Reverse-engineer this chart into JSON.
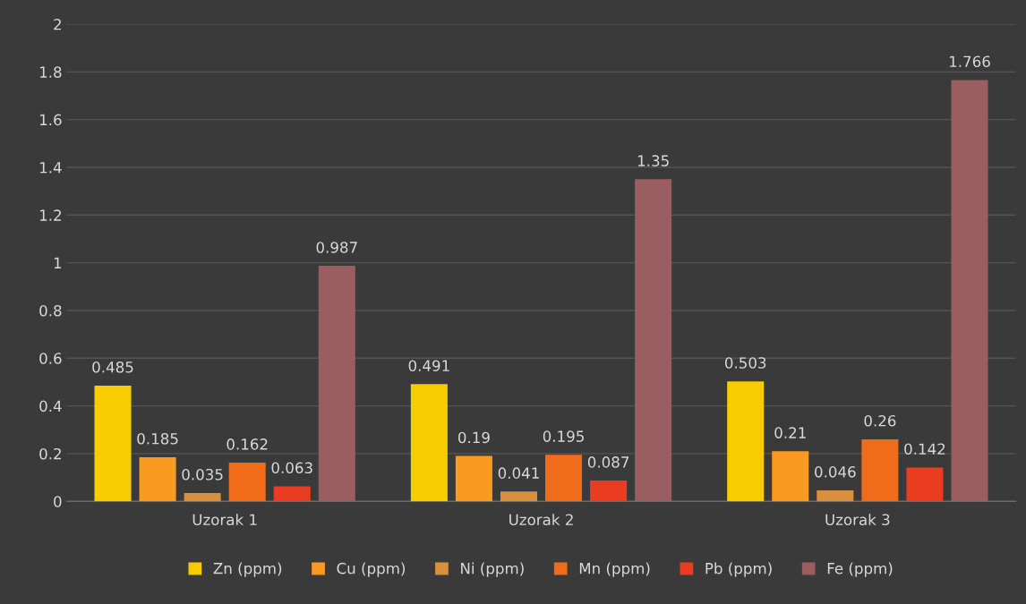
{
  "chart_data": {
    "type": "bar",
    "categories": [
      "Uzorak 1",
      "Uzorak 2",
      "Uzorak 3"
    ],
    "series": [
      {
        "name": "Zn (ppm)",
        "color": "#f7cc00",
        "values": [
          0.485,
          0.491,
          0.503
        ]
      },
      {
        "name": "Cu (ppm)",
        "color": "#fb9a20",
        "values": [
          0.185,
          0.19,
          0.21
        ]
      },
      {
        "name": "Ni (ppm)",
        "color": "#d9903e",
        "values": [
          0.035,
          0.041,
          0.046
        ]
      },
      {
        "name": "Mn (ppm)",
        "color": "#f06c1a",
        "values": [
          0.162,
          0.195,
          0.26
        ]
      },
      {
        "name": "Pb (ppm)",
        "color": "#ea3c20",
        "values": [
          0.063,
          0.087,
          0.142
        ]
      },
      {
        "name": "Fe (ppm)",
        "color": "#9a5e60",
        "values": [
          0.987,
          1.35,
          1.766
        ]
      }
    ],
    "ylim": [
      0,
      2
    ],
    "yticks": [
      0,
      {
        "value": 0.2,
        "label": "0.2"
      },
      {
        "value": 0.4,
        "label": "0.4"
      },
      {
        "value": 0.6,
        "label": "0.6"
      },
      {
        "value": 0.8,
        "label": "0.8"
      },
      1,
      {
        "value": 1.2,
        "label": "1.2"
      },
      {
        "value": 1.4,
        "label": "1.4"
      },
      {
        "value": 1.6,
        "label": "1.6"
      },
      {
        "value": 1.8,
        "label": "1.8"
      },
      2
    ],
    "grid": "y",
    "legend": "bottom",
    "data_labels": true
  }
}
